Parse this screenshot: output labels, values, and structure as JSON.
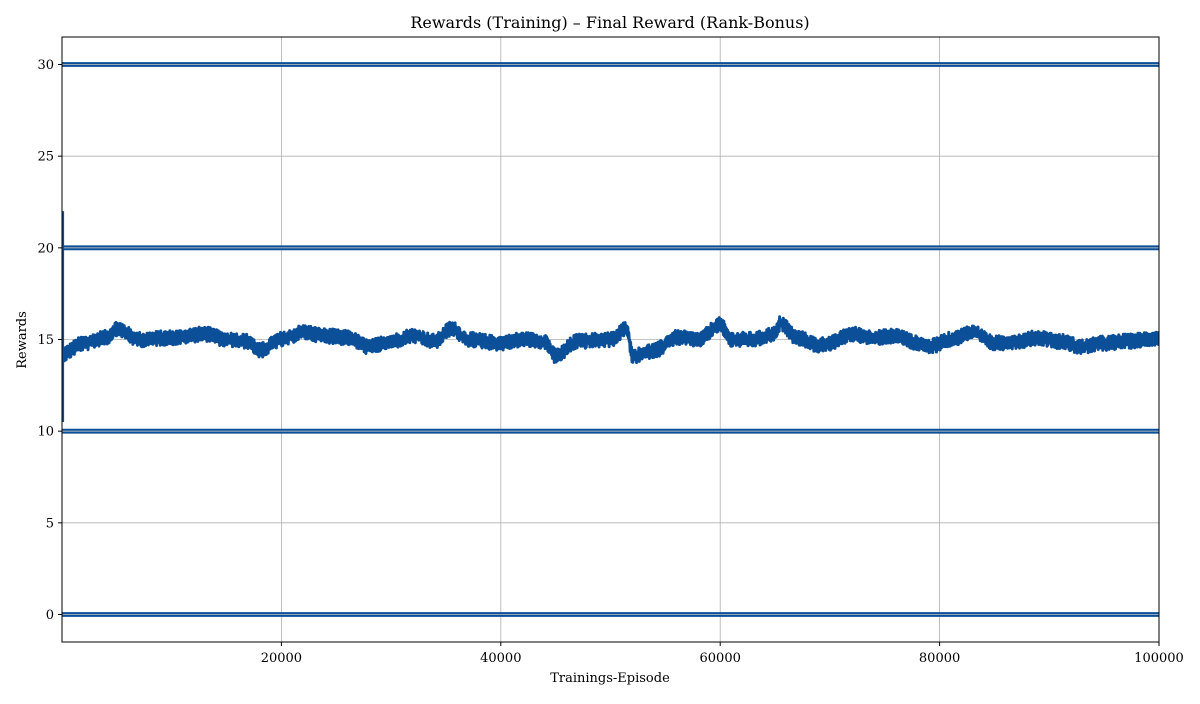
{
  "chart_data": {
    "type": "line",
    "title": "Rewards (Training) – Final Reward (Rank-Bonus)",
    "xlabel": "Trainings-Episode",
    "ylabel": "Rewards",
    "xlim": [
      0,
      100000
    ],
    "ylim": [
      -1.5,
      31.5
    ],
    "grid": true,
    "legend": "none",
    "x_ticks": [
      20000,
      40000,
      60000,
      80000,
      100000
    ],
    "y_ticks": [
      0,
      5,
      10,
      15,
      20,
      25,
      30
    ],
    "colors": {
      "series": "#0b4f99",
      "grid": "#b0b0b0",
      "axes": "#000000"
    },
    "series": [
      {
        "kind": "horizontal-band",
        "values": [
          30,
          20,
          10,
          0
        ],
        "x_range": [
          0,
          100000
        ]
      },
      {
        "kind": "noisy-trace",
        "x_range": [
          0,
          100000
        ],
        "initial_spike": {
          "x": 100,
          "y_min": 10.5,
          "y_max": 22
        },
        "x": [
          0,
          2000,
          4000,
          5000,
          7000,
          10000,
          13000,
          15000,
          17000,
          18000,
          20000,
          22000,
          24000,
          26000,
          28000,
          30000,
          32000,
          34000,
          35500,
          37000,
          40000,
          42000,
          44000,
          45000,
          47000,
          50000,
          51500,
          52000,
          54000,
          56000,
          58000,
          60000,
          61000,
          63000,
          65000,
          65500,
          67000,
          69000,
          70000,
          72000,
          74000,
          76000,
          78000,
          79000,
          81000,
          83000,
          85000,
          87000,
          89000,
          91000,
          93000,
          95000,
          97000,
          100000
        ],
        "y_mean": [
          14.2,
          14.8,
          15.1,
          15.6,
          15.0,
          15.1,
          15.3,
          15.0,
          14.9,
          14.4,
          15.0,
          15.4,
          15.2,
          15.1,
          14.6,
          14.9,
          15.2,
          14.9,
          15.6,
          15.0,
          14.8,
          15.0,
          14.9,
          14.1,
          14.9,
          15.0,
          15.6,
          14.1,
          14.4,
          15.1,
          15.0,
          15.8,
          15.0,
          15.0,
          15.3,
          15.9,
          15.1,
          14.7,
          14.8,
          15.3,
          15.1,
          15.2,
          14.8,
          14.6,
          15.0,
          15.4,
          14.8,
          14.9,
          15.1,
          14.9,
          14.6,
          14.8,
          14.9,
          15.1
        ]
      }
    ]
  }
}
